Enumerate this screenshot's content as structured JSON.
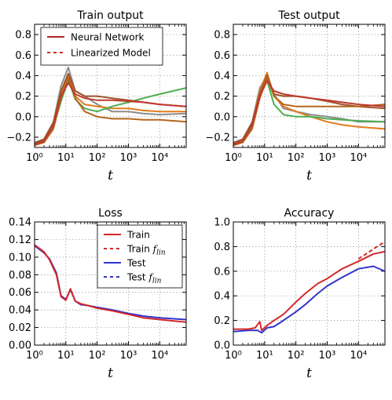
{
  "chart_data": [
    {
      "id": "train-output",
      "type": "line",
      "title": "Train output",
      "xlabel": "t",
      "ylabel": "",
      "xscale": "log",
      "xlim": [
        1,
        70000
      ],
      "ylim": [
        -0.3,
        0.9
      ],
      "yticks": [
        "−0.2",
        "0.0",
        "0.2",
        "0.4",
        "0.6",
        "0.8"
      ],
      "ytick_values": [
        -0.2,
        0.0,
        0.2,
        0.4,
        0.6,
        0.8
      ],
      "xticks": [
        "10⁰",
        "10¹",
        "10²",
        "10³",
        "10⁴"
      ],
      "grid": true,
      "legend": {
        "placement": "top",
        "entries": [
          {
            "label": "Neural Network",
            "style": "solid",
            "color": "#b22222"
          },
          {
            "label": "Linearized Model",
            "style": "dashed",
            "color": "#d62728"
          }
        ]
      },
      "series": [
        {
          "color": "#8c8c8c",
          "x": [
            1,
            2,
            4,
            7,
            12,
            20,
            40,
            100,
            300,
            1000,
            3000,
            10000,
            70000
          ],
          "y": [
            -0.25,
            -0.22,
            -0.05,
            0.3,
            0.48,
            0.25,
            0.2,
            0.12,
            0.05,
            0.05,
            0.03,
            0.02,
            0.03
          ]
        },
        {
          "color": "#e07b1a",
          "x": [
            1,
            2,
            4,
            7,
            12,
            20,
            40,
            100,
            300,
            1000,
            3000,
            10000,
            70000
          ],
          "y": [
            -0.27,
            -0.23,
            -0.08,
            0.22,
            0.4,
            0.2,
            0.12,
            0.1,
            0.08,
            0.08,
            0.06,
            0.05,
            0.05
          ]
        },
        {
          "color": "#4caf50",
          "x": [
            1,
            2,
            4,
            7,
            12,
            20,
            40,
            100,
            300,
            1000,
            3000,
            10000,
            70000
          ],
          "y": [
            -0.28,
            -0.24,
            -0.1,
            0.15,
            0.36,
            0.17,
            0.08,
            0.05,
            0.1,
            0.14,
            0.18,
            0.22,
            0.28
          ]
        },
        {
          "color": "#a0522d",
          "x": [
            1,
            2,
            4,
            7,
            12,
            20,
            40,
            100,
            300,
            1000,
            3000,
            10000,
            70000
          ],
          "y": [
            -0.26,
            -0.22,
            -0.06,
            0.25,
            0.42,
            0.25,
            0.2,
            0.2,
            0.18,
            0.16,
            0.14,
            0.12,
            0.1
          ]
        },
        {
          "color": "#b5651d",
          "x": [
            1,
            2,
            4,
            7,
            12,
            20,
            40,
            100,
            300,
            1000,
            3000,
            10000,
            70000
          ],
          "y": [
            -0.28,
            -0.25,
            -0.12,
            0.18,
            0.38,
            0.18,
            0.05,
            0.0,
            -0.02,
            -0.02,
            -0.03,
            -0.03,
            -0.05
          ]
        },
        {
          "color": "#c0392b",
          "x": [
            1,
            2,
            4,
            7,
            12,
            20,
            40,
            100,
            300,
            1000,
            3000,
            10000,
            70000
          ],
          "y": [
            -0.27,
            -0.24,
            -0.08,
            0.2,
            0.33,
            0.22,
            0.18,
            0.16,
            0.16,
            0.15,
            0.14,
            0.12,
            0.1
          ]
        }
      ]
    },
    {
      "id": "test-output",
      "type": "line",
      "title": "Test output",
      "xlabel": "t",
      "ylabel": "",
      "xscale": "log",
      "xlim": [
        1,
        70000
      ],
      "ylim": [
        -0.3,
        0.9
      ],
      "yticks": [
        "−0.2",
        "0.0",
        "0.2",
        "0.4",
        "0.6",
        "0.8"
      ],
      "ytick_values": [
        -0.2,
        0.0,
        0.2,
        0.4,
        0.6,
        0.8
      ],
      "xticks": [
        "10⁰",
        "10¹",
        "10²",
        "10³",
        "10⁴"
      ],
      "grid": true,
      "series": [
        {
          "color": "#8c8c8c",
          "x": [
            1,
            2,
            4,
            7,
            12,
            20,
            40,
            100,
            300,
            1000,
            3000,
            10000,
            70000
          ],
          "y": [
            -0.25,
            -0.22,
            -0.05,
            0.28,
            0.4,
            0.22,
            0.08,
            0.05,
            0.02,
            0.0,
            -0.02,
            -0.05,
            -0.05
          ]
        },
        {
          "color": "#e07b1a",
          "x": [
            1,
            2,
            4,
            7,
            12,
            20,
            40,
            100,
            300,
            1000,
            3000,
            10000,
            70000
          ],
          "y": [
            -0.27,
            -0.23,
            -0.08,
            0.25,
            0.43,
            0.2,
            0.1,
            0.05,
            0.0,
            -0.05,
            -0.08,
            -0.1,
            -0.12
          ]
        },
        {
          "color": "#4caf50",
          "x": [
            1,
            2,
            4,
            7,
            12,
            20,
            40,
            100,
            300,
            1000,
            3000,
            10000,
            70000
          ],
          "y": [
            -0.28,
            -0.24,
            -0.1,
            0.2,
            0.35,
            0.12,
            0.02,
            0.0,
            0.0,
            -0.02,
            -0.03,
            -0.04,
            -0.05
          ]
        },
        {
          "color": "#a0522d",
          "x": [
            1,
            2,
            4,
            7,
            12,
            20,
            40,
            100,
            300,
            1000,
            3000,
            10000,
            70000
          ],
          "y": [
            -0.26,
            -0.22,
            -0.06,
            0.22,
            0.4,
            0.22,
            0.2,
            0.2,
            0.18,
            0.15,
            0.12,
            0.1,
            0.08
          ]
        },
        {
          "color": "#b5651d",
          "x": [
            1,
            2,
            4,
            7,
            12,
            20,
            40,
            100,
            300,
            1000,
            3000,
            10000,
            70000
          ],
          "y": [
            -0.28,
            -0.25,
            -0.12,
            0.18,
            0.38,
            0.2,
            0.12,
            0.1,
            0.1,
            0.1,
            0.1,
            0.1,
            0.12
          ]
        },
        {
          "color": "#c0392b",
          "x": [
            1,
            2,
            4,
            7,
            12,
            20,
            40,
            100,
            300,
            1000,
            3000,
            10000,
            70000
          ],
          "y": [
            -0.27,
            -0.24,
            -0.08,
            0.2,
            0.35,
            0.25,
            0.22,
            0.2,
            0.18,
            0.16,
            0.14,
            0.12,
            0.1
          ]
        }
      ]
    },
    {
      "id": "loss",
      "type": "line",
      "title": "Loss",
      "xlabel": "t",
      "ylabel": "",
      "xscale": "log",
      "xlim": [
        1,
        70000
      ],
      "ylim": [
        0.0,
        0.14
      ],
      "yticks": [
        "0.00",
        "0.02",
        "0.04",
        "0.06",
        "0.08",
        "0.10",
        "0.12",
        "0.14"
      ],
      "ytick_values": [
        0.0,
        0.02,
        0.04,
        0.06,
        0.08,
        0.1,
        0.12,
        0.14
      ],
      "xticks": [
        "10⁰",
        "10¹",
        "10²",
        "10³",
        "10⁴"
      ],
      "grid": true,
      "legend": {
        "placement": "top-right",
        "entries": [
          {
            "label": "Train",
            "style": "solid",
            "color": "#d62728"
          },
          {
            "label": "Train ",
            "label_sub": "flin",
            "style": "dashed",
            "color": "#d62728"
          },
          {
            "label": "Test",
            "style": "solid",
            "color": "#3333cc"
          },
          {
            "label": "Test ",
            "label_sub": "flin",
            "style": "dashed",
            "color": "#3333cc"
          }
        ]
      },
      "series": [
        {
          "color": "#3333cc",
          "x": [
            1,
            2,
            3,
            5,
            7,
            10,
            14,
            20,
            30,
            50,
            100,
            300,
            1000,
            3000,
            10000,
            70000
          ],
          "y": [
            0.113,
            0.105,
            0.098,
            0.082,
            0.056,
            0.052,
            0.063,
            0.05,
            0.046,
            0.045,
            0.043,
            0.04,
            0.036,
            0.033,
            0.031,
            0.029
          ]
        },
        {
          "color": "#d62728",
          "x": [
            1,
            2,
            3,
            5,
            7,
            10,
            14,
            20,
            30,
            50,
            100,
            300,
            1000,
            3000,
            10000,
            70000
          ],
          "y": [
            0.114,
            0.106,
            0.097,
            0.08,
            0.055,
            0.051,
            0.064,
            0.05,
            0.047,
            0.045,
            0.042,
            0.039,
            0.035,
            0.031,
            0.029,
            0.026
          ]
        }
      ]
    },
    {
      "id": "accuracy",
      "type": "line",
      "title": "Accuracy",
      "xlabel": "t",
      "ylabel": "",
      "xscale": "log",
      "xlim": [
        1,
        70000
      ],
      "ylim": [
        0.0,
        1.0
      ],
      "yticks": [
        "0.0",
        "0.2",
        "0.4",
        "0.6",
        "0.8",
        "1.0"
      ],
      "ytick_values": [
        0.0,
        0.2,
        0.4,
        0.6,
        0.8,
        1.0
      ],
      "xticks": [
        "10⁰",
        "10¹",
        "10²",
        "10³",
        "10⁴"
      ],
      "grid": true,
      "series": [
        {
          "color": "#3333cc",
          "x": [
            1,
            3,
            6,
            8,
            12,
            20,
            40,
            100,
            200,
            500,
            1000,
            3000,
            10000,
            30000,
            70000
          ],
          "y": [
            0.11,
            0.12,
            0.12,
            0.1,
            0.14,
            0.15,
            0.2,
            0.27,
            0.33,
            0.42,
            0.48,
            0.55,
            0.62,
            0.64,
            0.6
          ]
        },
        {
          "color": "#d62728",
          "x": [
            1,
            3,
            5,
            7,
            8,
            12,
            20,
            40,
            100,
            200,
            500,
            1000,
            3000,
            10000,
            30000,
            70000
          ],
          "y": [
            0.13,
            0.13,
            0.14,
            0.19,
            0.12,
            0.16,
            0.2,
            0.25,
            0.35,
            0.42,
            0.5,
            0.54,
            0.62,
            0.68,
            0.74,
            0.76
          ]
        },
        {
          "color": "#d62728",
          "dashed": true,
          "x": [
            10000,
            30000,
            70000
          ],
          "y": [
            0.7,
            0.78,
            0.84
          ]
        }
      ]
    }
  ]
}
